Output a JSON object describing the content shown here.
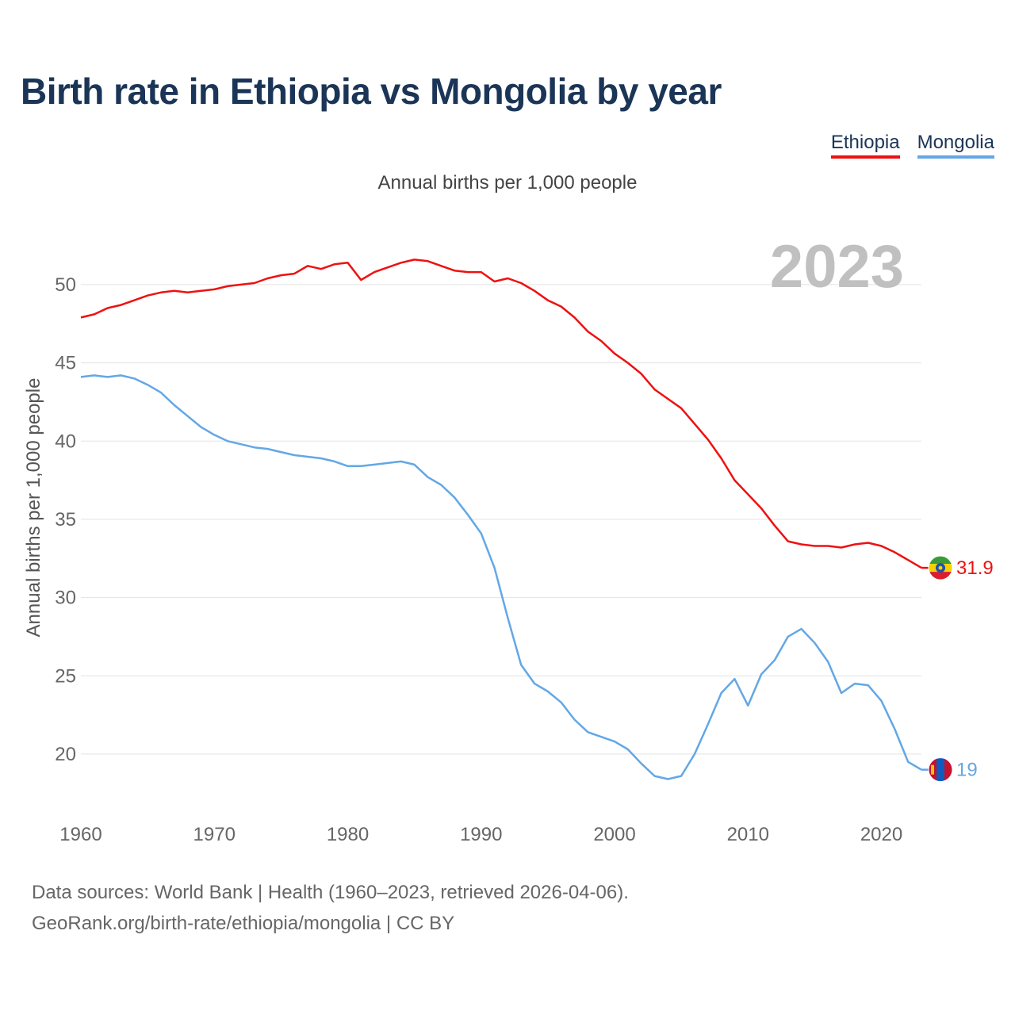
{
  "title": "Birth rate in Ethiopia vs Mongolia by year",
  "subtitle": "Annual births per 1,000 people",
  "legend": [
    {
      "label": "Ethiopia",
      "color": "#ee1111"
    },
    {
      "label": "Mongolia",
      "color": "#63a7e6"
    }
  ],
  "footer": {
    "line1": "Data sources: World Bank | Health (1960–2023, retrieved 2026-04-06).",
    "line2": "GeoRank.org/birth-rate/ethiopia/mongolia | CC BY"
  },
  "chart_data": {
    "type": "line",
    "title": "Birth rate in Ethiopia vs Mongolia by year",
    "ylabel": "Annual births per 1,000 people",
    "xlabel": "",
    "highlight_year": "2023",
    "xlim": [
      1960,
      2023
    ],
    "ylim": [
      16.5,
      54
    ],
    "x_ticks": [
      1960,
      1970,
      1980,
      1990,
      2000,
      2010,
      2020
    ],
    "y_ticks": [
      20,
      25,
      30,
      35,
      40,
      45,
      50
    ],
    "grid": true,
    "x": [
      1960,
      1961,
      1962,
      1963,
      1964,
      1965,
      1966,
      1967,
      1968,
      1969,
      1970,
      1971,
      1972,
      1973,
      1974,
      1975,
      1976,
      1977,
      1978,
      1979,
      1980,
      1981,
      1982,
      1983,
      1984,
      1985,
      1986,
      1987,
      1988,
      1989,
      1990,
      1991,
      1992,
      1993,
      1994,
      1995,
      1996,
      1997,
      1998,
      1999,
      2000,
      2001,
      2002,
      2003,
      2004,
      2005,
      2006,
      2007,
      2008,
      2009,
      2010,
      2011,
      2012,
      2013,
      2014,
      2015,
      2016,
      2017,
      2018,
      2019,
      2020,
      2021,
      2022,
      2023
    ],
    "series": [
      {
        "name": "Ethiopia",
        "color": "#ee1111",
        "end_label": "31.9",
        "values": [
          47.9,
          48.1,
          48.5,
          48.7,
          49.0,
          49.3,
          49.5,
          49.6,
          49.5,
          49.6,
          49.7,
          49.9,
          50.0,
          50.1,
          50.4,
          50.6,
          50.7,
          51.2,
          51.0,
          51.3,
          51.4,
          50.3,
          50.8,
          51.1,
          51.4,
          51.6,
          51.5,
          51.2,
          50.9,
          50.8,
          50.8,
          50.2,
          50.4,
          50.1,
          49.6,
          49.0,
          48.6,
          47.9,
          47.0,
          46.4,
          45.6,
          45.0,
          44.3,
          43.3,
          42.7,
          42.1,
          41.1,
          40.1,
          38.9,
          37.5,
          36.6,
          35.7,
          34.6,
          33.6,
          33.4,
          33.3,
          33.3,
          33.2,
          33.4,
          33.5,
          33.3,
          32.9,
          32.4,
          31.9
        ]
      },
      {
        "name": "Mongolia",
        "color": "#63a7e6",
        "end_label": "19",
        "values": [
          44.1,
          44.2,
          44.1,
          44.2,
          44.0,
          43.6,
          43.1,
          42.3,
          41.6,
          40.9,
          40.4,
          40.0,
          39.8,
          39.6,
          39.5,
          39.3,
          39.1,
          39.0,
          38.9,
          38.7,
          38.4,
          38.4,
          38.5,
          38.6,
          38.7,
          38.5,
          37.7,
          37.2,
          36.4,
          35.3,
          34.1,
          31.9,
          28.7,
          25.7,
          24.5,
          24.0,
          23.3,
          22.2,
          21.4,
          21.1,
          20.8,
          20.3,
          19.4,
          18.6,
          18.4,
          18.6,
          20.0,
          21.9,
          23.9,
          24.8,
          23.1,
          25.1,
          26.0,
          27.5,
          28.0,
          27.1,
          25.9,
          23.9,
          24.5,
          24.4,
          23.4,
          21.6,
          19.5,
          19.0
        ]
      }
    ]
  }
}
